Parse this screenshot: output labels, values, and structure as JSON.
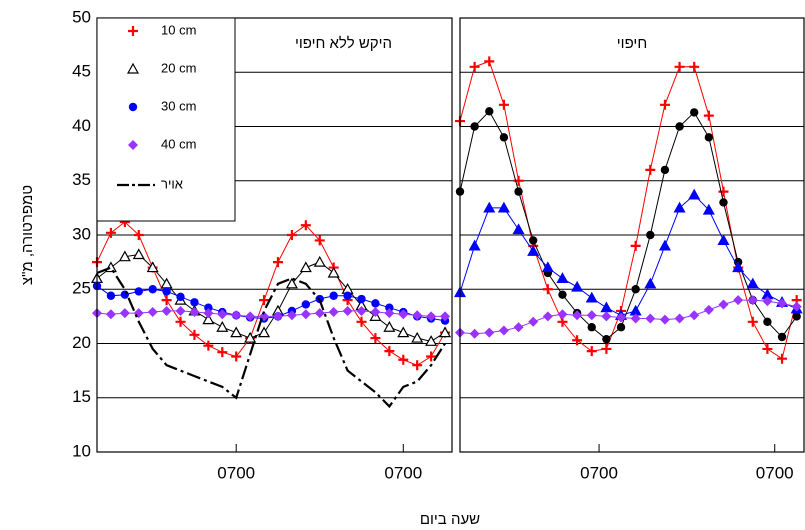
{
  "chart_data": [
    {
      "type": "line",
      "title": "היקש ללא חיפוי",
      "ylabel": "טמפרטורה, מ\"צ",
      "xlabel": "שעה ביום",
      "x": [
        0,
        2,
        4,
        6,
        8,
        10,
        12,
        14,
        16,
        18,
        20,
        22,
        24,
        26,
        28,
        30,
        32,
        34,
        36,
        38,
        40,
        42,
        44,
        46,
        48,
        50
      ],
      "xlim": [
        0,
        51
      ],
      "xticks": [
        {
          "value": 20,
          "label": "0700"
        },
        {
          "value": 44,
          "label": "0700"
        }
      ],
      "ylim": [
        10,
        50
      ],
      "yticks": [
        10,
        15,
        20,
        25,
        30,
        35,
        40,
        45,
        50
      ],
      "grid": true,
      "legend": "upper left",
      "series": [
        {
          "name": "10 cm",
          "color": "#ff0000",
          "marker": "plus",
          "values": [
            27.5,
            30.2,
            31.2,
            30,
            27,
            24,
            22,
            20.8,
            19.8,
            19.2,
            18.8,
            20.5,
            24,
            27.5,
            30,
            30.9,
            29.5,
            27,
            24,
            22,
            20.5,
            19.3,
            18.5,
            18,
            18.8,
            21
          ]
        },
        {
          "name": "20 cm",
          "color": "#000000",
          "marker": "triangle-open",
          "values": [
            26,
            27,
            28,
            28.2,
            27,
            25.5,
            24,
            23,
            22.2,
            21.5,
            21,
            20.5,
            21,
            23,
            25.5,
            27,
            27.5,
            26.5,
            25,
            23.5,
            22.5,
            21.5,
            21,
            20.5,
            20.2,
            21
          ]
        },
        {
          "name": "30 cm",
          "color": "#0000ff",
          "marker": "circle",
          "values": [
            25.3,
            24.4,
            24.5,
            24.8,
            25,
            24.8,
            24.3,
            23.8,
            23.3,
            22.9,
            22.6,
            22.4,
            22.3,
            22.5,
            23,
            23.6,
            24.1,
            24.4,
            24.4,
            24.1,
            23.7,
            23.3,
            22.9,
            22.5,
            22.3,
            22.1
          ]
        },
        {
          "name": "40 cm",
          "color": "#9933ff",
          "marker": "diamond",
          "values": [
            22.8,
            22.7,
            22.8,
            22.8,
            22.9,
            23,
            23,
            22.9,
            22.8,
            22.7,
            22.6,
            22.5,
            22.5,
            22.5,
            22.6,
            22.7,
            22.8,
            22.9,
            23,
            23,
            22.9,
            22.8,
            22.7,
            22.6,
            22.5,
            22.5
          ]
        },
        {
          "name": "אויר",
          "color": "#000000",
          "marker": "none",
          "linestyle": "dashdot",
          "values": [
            26.5,
            27,
            25,
            22,
            19.5,
            18,
            17.5,
            17,
            16.5,
            16,
            15,
            19,
            23,
            25.5,
            26,
            25.5,
            24,
            20.5,
            17.5,
            16.5,
            15.5,
            14.2,
            16,
            16.5,
            18,
            20
          ]
        }
      ]
    },
    {
      "type": "line",
      "title": "חיפוי",
      "x": [
        0,
        2,
        4,
        6,
        8,
        10,
        12,
        14,
        16,
        18,
        20,
        22,
        24,
        26,
        28,
        30,
        32,
        34,
        36,
        38,
        40,
        42,
        44,
        46
      ],
      "xlim": [
        0,
        47
      ],
      "xticks": [
        {
          "value": 19,
          "label": "0700"
        },
        {
          "value": 43,
          "label": "0700"
        }
      ],
      "ylim": [
        10,
        50
      ],
      "yticks": [
        10,
        15,
        20,
        25,
        30,
        35,
        40,
        45,
        50
      ],
      "grid": true,
      "series": [
        {
          "color": "#ff0000",
          "marker": "plus",
          "values": [
            40.5,
            45.5,
            46,
            42,
            35,
            29,
            25,
            22,
            20.3,
            19.3,
            19.5,
            23,
            29,
            36,
            42,
            45.5,
            45.5,
            41,
            34,
            27,
            22,
            19.5,
            18.6,
            24
          ]
        },
        {
          "color": "#000000",
          "marker": "circle",
          "values": [
            34,
            40,
            41.4,
            39,
            34,
            29.5,
            26.5,
            24.5,
            22.8,
            21.5,
            20.4,
            21.5,
            25,
            30,
            36,
            40,
            41.3,
            39,
            33,
            27.5,
            24,
            22,
            20.6,
            22.5
          ]
        },
        {
          "color": "#0000ff",
          "marker": "triangle",
          "values": [
            24.7,
            29,
            32.5,
            32.5,
            30.5,
            28.5,
            27,
            26,
            25.2,
            24.2,
            23.3,
            22.6,
            23,
            25.5,
            29,
            32.5,
            33.7,
            32.3,
            29.5,
            27,
            25.5,
            24.5,
            23.8,
            23.2
          ]
        },
        {
          "color": "#9933ff",
          "marker": "diamond",
          "values": [
            21,
            20.9,
            21,
            21.2,
            21.5,
            22,
            22.5,
            22.7,
            22.6,
            22.6,
            22.5,
            22.4,
            22.3,
            22.3,
            22.2,
            22.3,
            22.6,
            23.1,
            23.6,
            24,
            24,
            23.9,
            23.7,
            23.4
          ]
        }
      ]
    }
  ]
}
